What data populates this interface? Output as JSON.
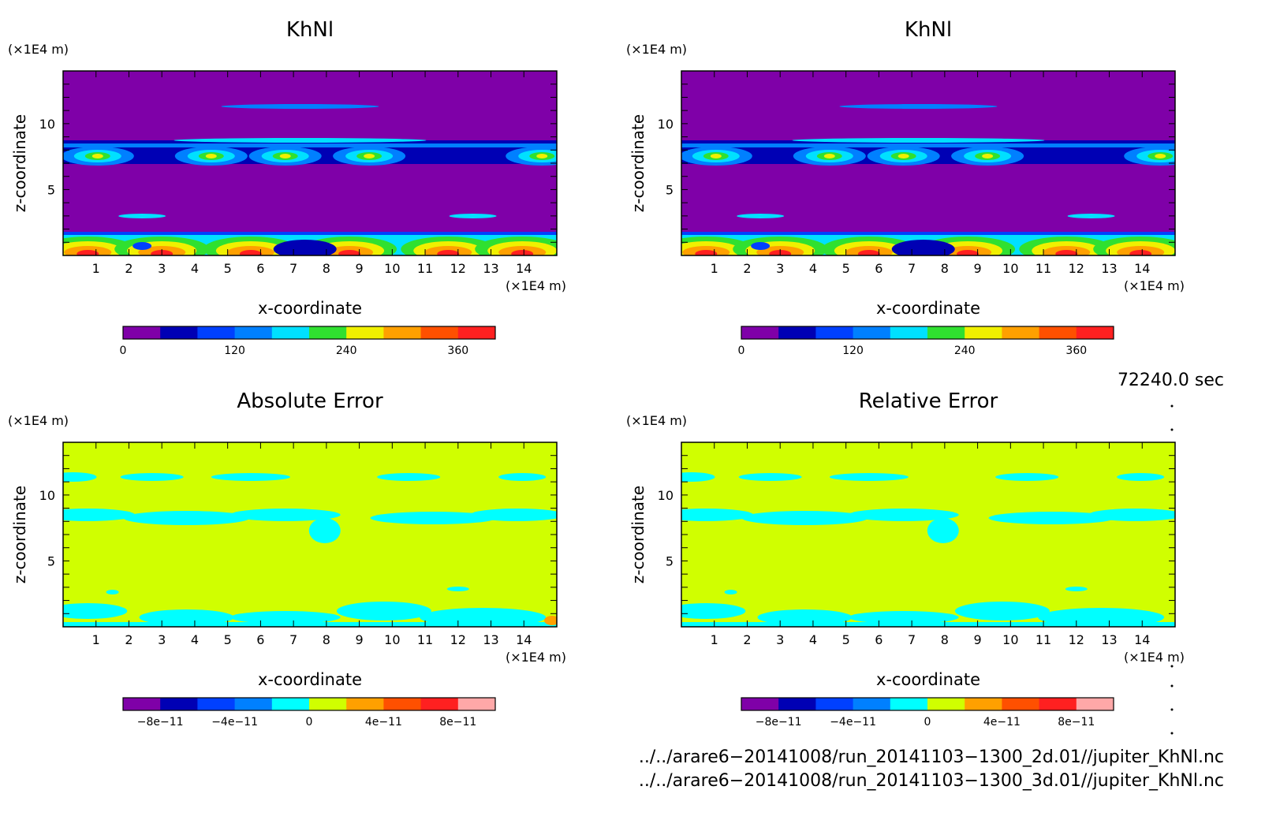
{
  "chart_data": [
    {
      "type": "heatmap",
      "title": "KhNl",
      "xlabel": "x-coordinate",
      "ylabel": "z-coordinate",
      "xunit": "(×1E4 m)",
      "zunit": "(×1E4 m)",
      "xlim": [
        0,
        15
      ],
      "ylim": [
        0,
        14
      ],
      "xticks": [
        "1",
        "2",
        "3",
        "4",
        "5",
        "6",
        "7",
        "8",
        "9",
        "10",
        "11",
        "12",
        "13",
        "14"
      ],
      "yticks": [
        "5",
        "10"
      ],
      "colorbar": {
        "colors": [
          "#7f00a8",
          "#0000b4",
          "#0040ff",
          "#0080ff",
          "#00e0ff",
          "#30e030",
          "#f0f000",
          "#ffa000",
          "#ff5000",
          "#ff2020"
        ],
        "labels": [
          "0",
          "120",
          "240",
          "360"
        ],
        "label_positions": [
          0,
          120,
          240,
          360
        ],
        "range": [
          0,
          400
        ]
      }
    },
    {
      "type": "heatmap",
      "title": "KhNl",
      "xlabel": "x-coordinate",
      "ylabel": "z-coordinate",
      "xunit": "(×1E4 m)",
      "zunit": "(×1E4 m)",
      "xlim": [
        0,
        15
      ],
      "ylim": [
        0,
        14
      ],
      "xticks": [
        "1",
        "2",
        "3",
        "4",
        "5",
        "6",
        "7",
        "8",
        "9",
        "10",
        "11",
        "12",
        "13",
        "14"
      ],
      "yticks": [
        "5",
        "10"
      ],
      "colorbar": {
        "colors": [
          "#7f00a8",
          "#0000b4",
          "#0040ff",
          "#0080ff",
          "#00e0ff",
          "#30e030",
          "#f0f000",
          "#ffa000",
          "#ff5000",
          "#ff2020"
        ],
        "labels": [
          "0",
          "120",
          "240",
          "360"
        ],
        "label_positions": [
          0,
          120,
          240,
          360
        ],
        "range": [
          0,
          400
        ]
      }
    },
    {
      "type": "heatmap",
      "title": "Absolute Error",
      "xlabel": "x-coordinate",
      "ylabel": "z-coordinate",
      "xunit": "(×1E4 m)",
      "zunit": "(×1E4 m)",
      "xlim": [
        0,
        15
      ],
      "ylim": [
        0,
        14
      ],
      "xticks": [
        "1",
        "2",
        "3",
        "4",
        "5",
        "6",
        "7",
        "8",
        "9",
        "10",
        "11",
        "12",
        "13",
        "14"
      ],
      "yticks": [
        "5",
        "10"
      ],
      "colorbar": {
        "colors": [
          "#7f00a8",
          "#0000b4",
          "#0040ff",
          "#0080ff",
          "#00ffff",
          "#d0ff00",
          "#ffa000",
          "#ff5000",
          "#ff2020",
          "#ffa8a8"
        ],
        "labels": [
          "−8e−11",
          "−4e−11",
          "0",
          "4e−11",
          "8e−11"
        ],
        "label_positions": [
          -8,
          -4,
          0,
          4,
          8
        ],
        "range": [
          -10,
          10
        ]
      }
    },
    {
      "type": "heatmap",
      "title": "Relative Error",
      "xlabel": "x-coordinate",
      "ylabel": "z-coordinate",
      "xunit": "(×1E4 m)",
      "zunit": "(×1E4 m)",
      "xlim": [
        0,
        15
      ],
      "ylim": [
        0,
        14
      ],
      "xticks": [
        "1",
        "2",
        "3",
        "4",
        "5",
        "6",
        "7",
        "8",
        "9",
        "10",
        "11",
        "12",
        "13",
        "14"
      ],
      "yticks": [
        "5",
        "10"
      ],
      "colorbar": {
        "colors": [
          "#7f00a8",
          "#0000b4",
          "#0040ff",
          "#0080ff",
          "#00ffff",
          "#d0ff00",
          "#ffa000",
          "#ff5000",
          "#ff2020",
          "#ffa8a8"
        ],
        "labels": [
          "−8e−11",
          "−4e−11",
          "0",
          "4e−11",
          "8e−11"
        ],
        "label_positions": [
          -8,
          -4,
          0,
          4,
          8
        ],
        "range": [
          -10,
          10
        ]
      }
    }
  ],
  "footer": {
    "time": "72240.0 sec",
    "file1": "../../arare6−20141008/run_20141103−1300_2d.01//jupiter_KhNl.nc",
    "file2": "../../arare6−20141008/run_20141103−1300_3d.01//jupiter_KhNl.nc"
  },
  "colors": {
    "khnl_background": "#7f00a8",
    "error_background": "#d0ff00",
    "error_patch": "#00ffff"
  }
}
